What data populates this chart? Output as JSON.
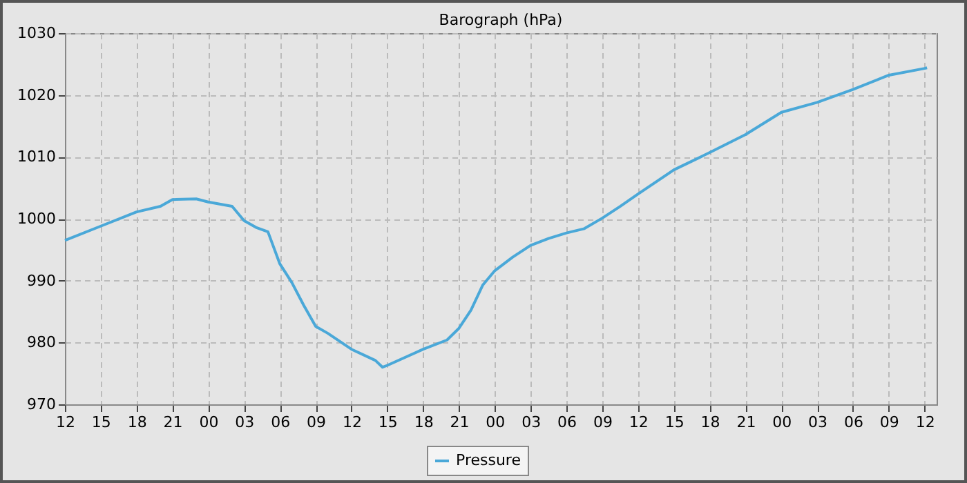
{
  "chart_data": {
    "type": "line",
    "title": "Barograph (hPa)",
    "x": [
      12,
      15,
      18,
      20,
      21,
      23,
      24,
      26,
      27,
      28,
      29,
      30,
      31,
      32,
      33,
      34,
      36,
      38,
      38.6,
      39,
      42,
      44,
      45,
      46,
      47,
      48,
      49.5,
      51,
      52.5,
      54,
      55.5,
      57,
      58.5,
      60,
      63,
      66,
      69,
      72,
      75,
      78,
      81,
      84,
      84.2
    ],
    "series": [
      {
        "name": "Pressure",
        "color": "#4aa8d8",
        "values": [
          996.5,
          998.8,
          1001.1,
          1002.0,
          1003.1,
          1003.2,
          1002.7,
          1002.0,
          999.7,
          998.6,
          997.9,
          992.7,
          989.7,
          986.0,
          982.6,
          981.5,
          978.9,
          977.1,
          976.0,
          976.3,
          978.9,
          980.4,
          982.3,
          985.2,
          989.3,
          991.6,
          993.8,
          995.7,
          996.8,
          997.7,
          998.4,
          1000.1,
          1002.0,
          1004.0,
          1007.9,
          1010.7,
          1013.6,
          1017.2,
          1018.8,
          1020.9,
          1023.2,
          1024.3,
          1024.4
        ]
      }
    ],
    "xlim": [
      12,
      85
    ],
    "xticks": [
      {
        "value": 12,
        "label": "12"
      },
      {
        "value": 15,
        "label": "15"
      },
      {
        "value": 18,
        "label": "18"
      },
      {
        "value": 21,
        "label": "21"
      },
      {
        "value": 24,
        "label": "00"
      },
      {
        "value": 27,
        "label": "03"
      },
      {
        "value": 30,
        "label": "06"
      },
      {
        "value": 33,
        "label": "09"
      },
      {
        "value": 36,
        "label": "12"
      },
      {
        "value": 39,
        "label": "15"
      },
      {
        "value": 42,
        "label": "18"
      },
      {
        "value": 45,
        "label": "21"
      },
      {
        "value": 48,
        "label": "00"
      },
      {
        "value": 51,
        "label": "03"
      },
      {
        "value": 54,
        "label": "06"
      },
      {
        "value": 57,
        "label": "09"
      },
      {
        "value": 60,
        "label": "12"
      },
      {
        "value": 63,
        "label": "15"
      },
      {
        "value": 66,
        "label": "18"
      },
      {
        "value": 69,
        "label": "21"
      },
      {
        "value": 72,
        "label": "00"
      },
      {
        "value": 75,
        "label": "03"
      },
      {
        "value": 78,
        "label": "06"
      },
      {
        "value": 81,
        "label": "09"
      },
      {
        "value": 84,
        "label": "12"
      }
    ],
    "ylim": [
      970,
      1030
    ],
    "yticks": [
      970,
      980,
      990,
      1000,
      1010,
      1020,
      1030
    ],
    "grid": true,
    "legend": "bottom",
    "marker": "none",
    "line_style": "solid"
  }
}
